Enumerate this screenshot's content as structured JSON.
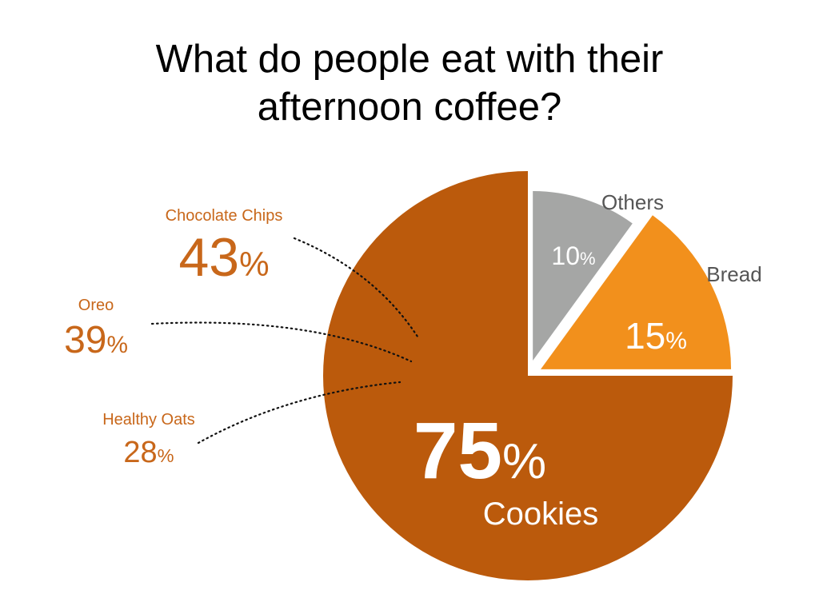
{
  "title_lines": [
    "What do people eat with their",
    "afternoon coffee?"
  ],
  "colors": {
    "cookies": "#bb5a0c",
    "bread": "#f2901c",
    "others": "#a5a6a5",
    "callout_text": "#c8671a",
    "callout_line": "#111111",
    "slice_text": "#ffffff",
    "outer_label": "#555555"
  },
  "chart_data": {
    "type": "pie",
    "title": "What do people eat with their afternoon coffee?",
    "slices": [
      {
        "label": "Cookies",
        "value": 75,
        "display": "75%",
        "exploded": false
      },
      {
        "label": "Bread",
        "value": 15,
        "display": "15%",
        "exploded": true
      },
      {
        "label": "Others",
        "value": 10,
        "display": "10%",
        "exploded": true
      }
    ],
    "breakdown": {
      "of": "Cookies",
      "items": [
        {
          "label": "Chocolate Chips",
          "value": 43,
          "number": "43",
          "display": "43%"
        },
        {
          "label": "Oreo",
          "value": 39,
          "number": "39",
          "display": "39%"
        },
        {
          "label": "Healthy Oats",
          "value": 28,
          "number": "28",
          "display": "28%"
        }
      ]
    }
  }
}
